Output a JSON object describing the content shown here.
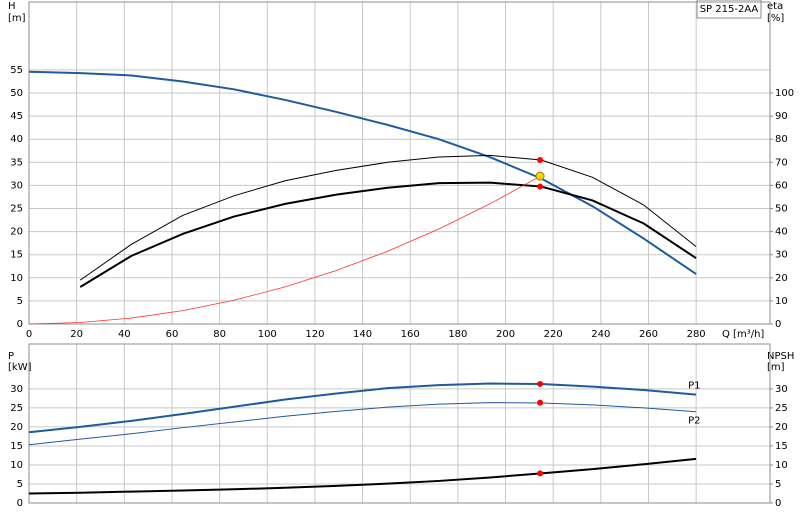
{
  "chart_data": [
    {
      "type": "line",
      "label_box": "SP 215-2AA",
      "y_label": "H",
      "y_unit": "[m]",
      "y2_label": "eta",
      "y2_unit": "[%]",
      "x_label": "Q [m³/h]",
      "x": [
        0,
        21.5,
        43,
        64.5,
        86,
        107.5,
        129,
        150.5,
        172,
        193.5,
        215,
        236.5,
        258,
        280
      ],
      "xlim": [
        0,
        311
      ],
      "xticks": [
        0,
        20,
        40,
        60,
        80,
        100,
        120,
        140,
        160,
        180,
        200,
        220,
        240,
        260,
        280
      ],
      "ylim": [
        0,
        69.7
      ],
      "yticks": [
        0,
        5,
        10,
        15,
        20,
        25,
        30,
        35,
        40,
        45,
        50,
        55
      ],
      "y2lim": [
        0,
        139.4
      ],
      "y2ticks": [
        0,
        10,
        20,
        30,
        40,
        50,
        60,
        70,
        80,
        90,
        100
      ],
      "grid": true,
      "series": [
        {
          "color": "#1f5aa0",
          "width": 2,
          "values": [
            54.6,
            54.3,
            53.8,
            52.5,
            50.8,
            48.5,
            45.9,
            43.1,
            40.0,
            36.1,
            31.5,
            25.5,
            18.5,
            10.8
          ]
        },
        {
          "color": "#000000",
          "width": 1,
          "axis": "y2",
          "values": [
            null,
            19,
            34.5,
            47,
            55.5,
            62,
            66.5,
            70,
            72.3,
            73,
            71,
            63.5,
            51.5,
            33.5
          ]
        },
        {
          "color": "#000000",
          "width": 2,
          "axis": "y2",
          "values": [
            null,
            16,
            29.5,
            39,
            46.5,
            52,
            56,
            59,
            61,
            61.2,
            59.5,
            53.5,
            43.5,
            28.5
          ]
        },
        {
          "color": "#ff3030",
          "width": 0.8,
          "values": [
            0,
            0.32,
            1.29,
            2.89,
            5.14,
            8.03,
            11.57,
            15.74,
            20.56,
            26.02,
            32.13,
            null,
            null,
            null
          ]
        }
      ],
      "markers": [
        {
          "x": 214.5,
          "y": 32,
          "color": "#ffd700"
        },
        {
          "x": 214.5,
          "y": 71,
          "axis": "y2",
          "color": "#ff0000"
        },
        {
          "x": 214.5,
          "y": 59.5,
          "axis": "y2",
          "color": "#ff0000"
        }
      ]
    },
    {
      "type": "line",
      "y_label": "P",
      "y_unit": "[kW]",
      "y2_label": "NPSH",
      "y2_unit": "[m]",
      "x": [
        0,
        21.5,
        43,
        64.5,
        86,
        107.5,
        129,
        150.5,
        172,
        193.5,
        215,
        236.5,
        258,
        280
      ],
      "ylim": [
        0,
        41.8
      ],
      "yticks": [
        0,
        5,
        10,
        15,
        20,
        25,
        30
      ],
      "y2lim": [
        0,
        41.8
      ],
      "y2ticks": [
        0,
        5,
        10,
        15,
        20,
        25,
        30
      ],
      "grid": true,
      "series": [
        {
          "name": "P1",
          "color": "#1f5aa0",
          "width": 2,
          "values": [
            18.6,
            20,
            21.6,
            23.4,
            25.3,
            27.2,
            28.8,
            30.2,
            31,
            31.4,
            31.3,
            30.6,
            29.7,
            28.5
          ]
        },
        {
          "name": "P2",
          "color": "#1f5aa0",
          "width": 1,
          "values": [
            15.3,
            16.8,
            18.2,
            19.8,
            21.3,
            22.8,
            24.1,
            25.2,
            26,
            26.4,
            26.3,
            25.8,
            25,
            24
          ]
        },
        {
          "color": "#000000",
          "width": 2,
          "axis": "y2",
          "values": [
            2.5,
            2.7,
            3,
            3.3,
            3.6,
            4,
            4.5,
            5.1,
            5.8,
            6.7,
            7.8,
            8.9,
            10.2,
            11.6
          ]
        }
      ],
      "markers": [
        {
          "x": 214.5,
          "y": 31.3,
          "color": "#ff0000"
        },
        {
          "x": 214.5,
          "y": 26.4,
          "color": "#ff0000"
        },
        {
          "x": 214.5,
          "y": 7.8,
          "axis": "y2",
          "color": "#ff0000"
        }
      ]
    }
  ]
}
